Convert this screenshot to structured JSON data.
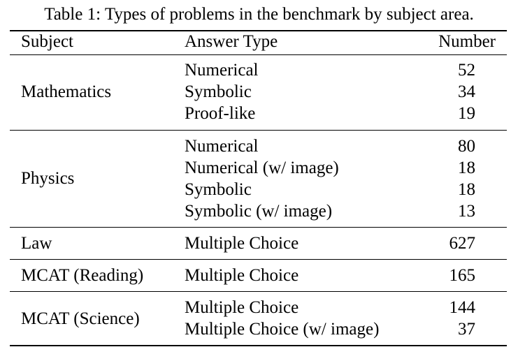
{
  "caption": "Table 1: Types of problems in the benchmark by subject area.",
  "headers": {
    "subject": "Subject",
    "answer_type": "Answer Type",
    "number": "Number"
  },
  "groups": [
    {
      "subject": "Mathematics",
      "rows": [
        {
          "answer_type": "Numerical",
          "number": "52"
        },
        {
          "answer_type": "Symbolic",
          "number": "34"
        },
        {
          "answer_type": "Proof-like",
          "number": "19"
        }
      ]
    },
    {
      "subject": "Physics",
      "rows": [
        {
          "answer_type": "Numerical",
          "number": "80"
        },
        {
          "answer_type": "Numerical (w/ image)",
          "number": "18"
        },
        {
          "answer_type": "Symbolic",
          "number": "18"
        },
        {
          "answer_type": "Symbolic (w/ image)",
          "number": "13"
        }
      ]
    },
    {
      "subject": "Law",
      "rows": [
        {
          "answer_type": "Multiple Choice",
          "number": "627"
        }
      ]
    },
    {
      "subject": "MCAT (Reading)",
      "rows": [
        {
          "answer_type": "Multiple Choice",
          "number": "165"
        }
      ]
    },
    {
      "subject": "MCAT (Science)",
      "rows": [
        {
          "answer_type": "Multiple Choice",
          "number": "144"
        },
        {
          "answer_type": "Multiple Choice (w/ image)",
          "number": "37"
        }
      ]
    }
  ]
}
